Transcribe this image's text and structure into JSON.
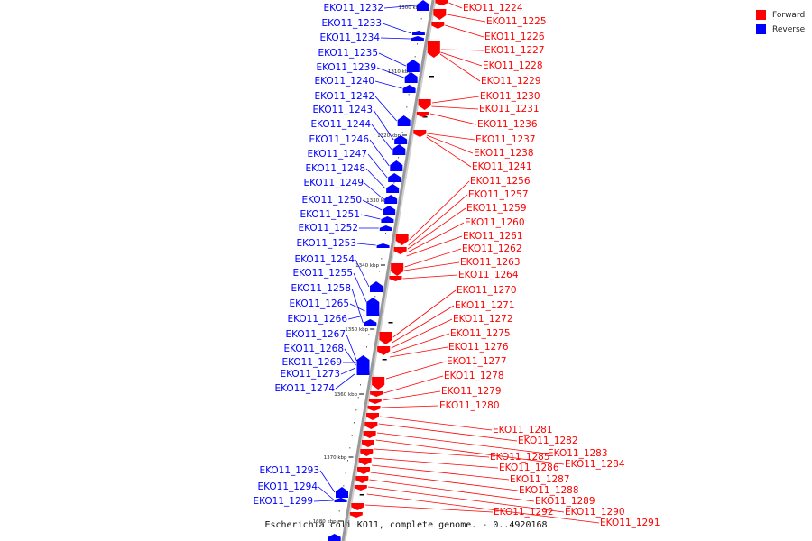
{
  "caption": "Escherichia coli KO11, complete genome. - 0..4920168",
  "legend": [
    {
      "label": "Forward",
      "color": "#ff0000"
    },
    {
      "label": "Reverse",
      "color": "#0000ff"
    }
  ],
  "colors": {
    "forward": "#ff0000",
    "reverse": "#0000ff",
    "backbone": "#999999",
    "tick": "#000000"
  },
  "ticks": [
    "1300 kbp",
    "1310 kbp",
    "1320 kbp",
    "1330 kbp",
    "1340 kbp",
    "1350 kbp",
    "1360 kbp",
    "1370 kbp",
    "1380 kbp"
  ],
  "reverse_genes": [
    "EKO11_1232",
    "EKO11_1233",
    "EKO11_1234",
    "EKO11_1235",
    "EKO11_1239",
    "EKO11_1240",
    "EKO11_1242",
    "EKO11_1243",
    "EKO11_1244",
    "EKO11_1246",
    "EKO11_1247",
    "EKO11_1248",
    "EKO11_1249",
    "EKO11_1250",
    "EKO11_1251",
    "EKO11_1252",
    "EKO11_1253",
    "EKO11_1254",
    "EKO11_1255",
    "EKO11_1258",
    "EKO11_1265",
    "EKO11_1266",
    "EKO11_1267",
    "EKO11_1268",
    "EKO11_1269",
    "EKO11_1273",
    "EKO11_1274",
    "EKO11_1293",
    "EKO11_1294",
    "EKO11_1299"
  ],
  "forward_genes": [
    "EKO11_1224",
    "EKO11_1225",
    "EKO11_1226",
    "EKO11_1227",
    "EKO11_1228",
    "EKO11_1229",
    "EKO11_1230",
    "EKO11_1231",
    "EKO11_1236",
    "EKO11_1237",
    "EKO11_1238",
    "EKO11_1241",
    "EKO11_1256",
    "EKO11_1257",
    "EKO11_1259",
    "EKO11_1260",
    "EKO11_1261",
    "EKO11_1262",
    "EKO11_1263",
    "EKO11_1264",
    "EKO11_1270",
    "EKO11_1271",
    "EKO11_1272",
    "EKO11_1275",
    "EKO11_1276",
    "EKO11_1277",
    "EKO11_1278",
    "EKO11_1279",
    "EKO11_1280",
    "EKO11_1281",
    "EKO11_1282",
    "EKO11_1283",
    "EKO11_1284",
    "EKO11_1285",
    "EKO11_1286",
    "EKO11_1287",
    "EKO11_1288",
    "EKO11_1289",
    "EKO11_1290",
    "EKO11_1291",
    "EKO11_1292"
  ]
}
